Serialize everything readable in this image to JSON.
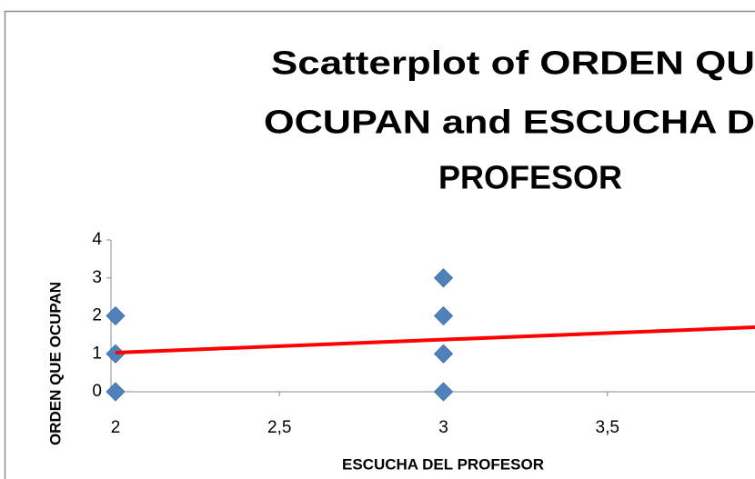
{
  "chart_data": {
    "type": "scatter",
    "title": [
      "Scatterplot of ORDEN QU",
      "OCUPAN and ESCUCHA D",
      "PROFESOR"
    ],
    "xlabel": "ESCUCHA DEL PROFESOR",
    "ylabel": "ORDEN QUE OCUPAN",
    "series": [
      {
        "color": "#4f81bd",
        "x": [
          2,
          2,
          2,
          3,
          3,
          3,
          3
        ],
        "values": [
          0,
          1,
          2,
          0,
          1,
          2,
          3
        ]
      }
    ],
    "trendline": {
      "color": "#ff0000",
      "x": [
        2,
        3.95
      ],
      "values": [
        1.03,
        1.7
      ]
    },
    "xlim": [
      2,
      3.95
    ],
    "xticks": [
      2,
      {
        "value": 2.5,
        "label": "2,5"
      },
      3,
      {
        "value": 3.5,
        "label": "3,5"
      }
    ],
    "ylim": [
      0,
      4
    ],
    "yticks": [
      0,
      1,
      2,
      3,
      4
    ]
  }
}
